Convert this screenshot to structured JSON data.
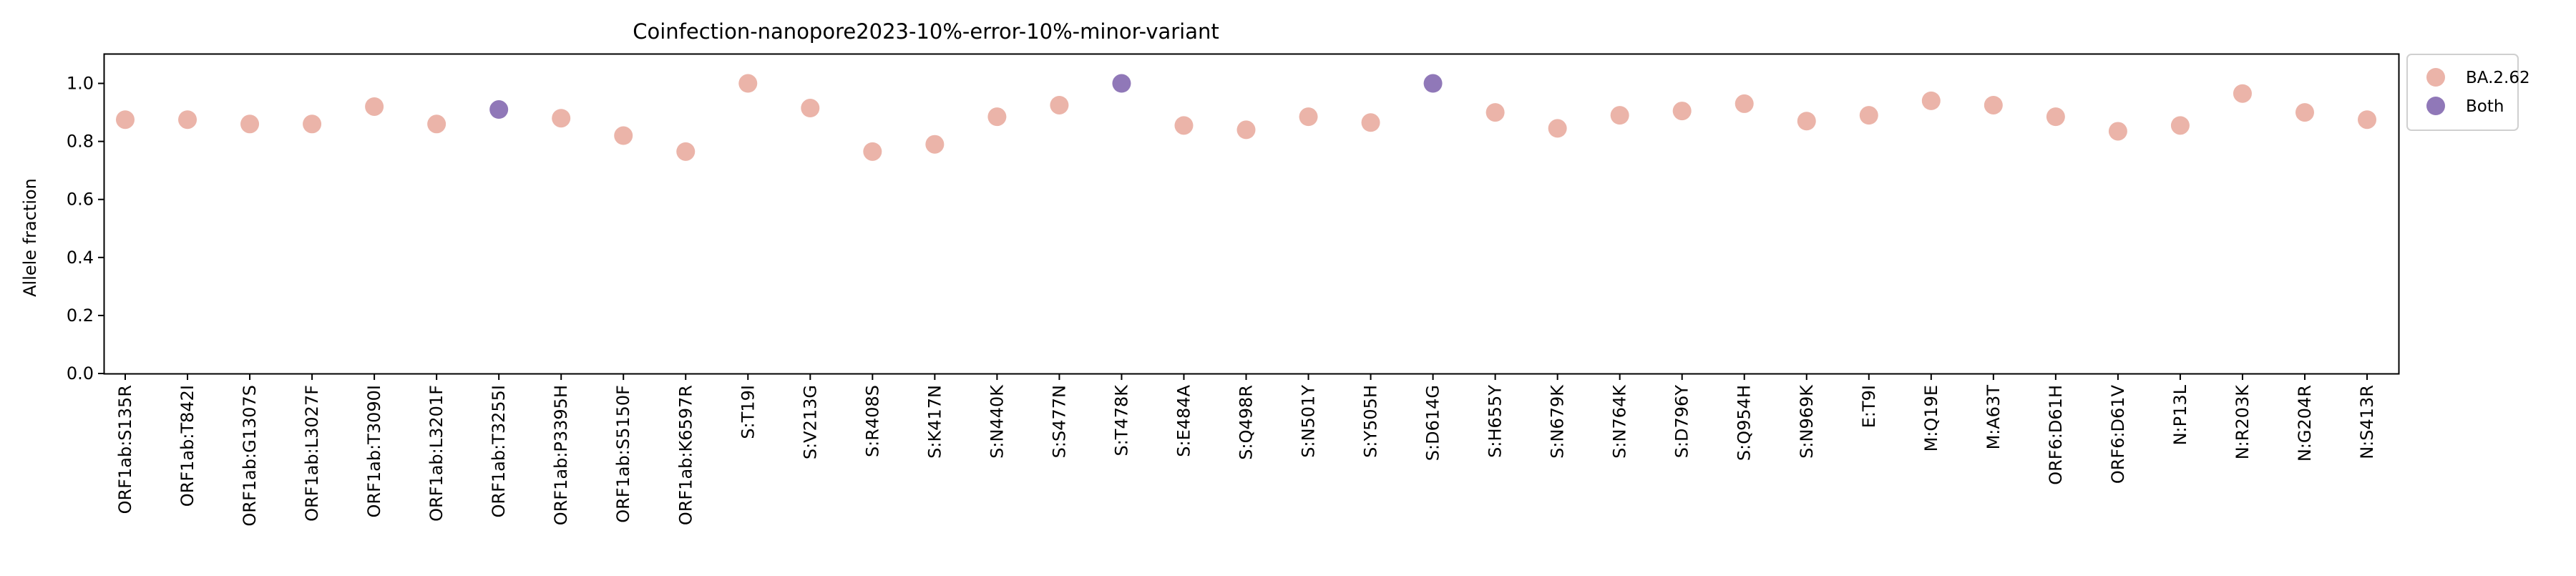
{
  "chart_data": {
    "type": "scatter",
    "title": "Coinfection-nanopore2023-10%-error-10%-minor-variant",
    "xlabel": "",
    "ylabel": "Allele fraction",
    "ylim": [
      0,
      1.1
    ],
    "yticks": [
      0.0,
      0.2,
      0.4,
      0.6,
      0.8,
      1.0
    ],
    "ytick_labels": [
      "0.0",
      "0.2",
      "0.4",
      "0.6",
      "0.8",
      "1.0"
    ],
    "grid": false,
    "legend": {
      "placement": "outside-top-right",
      "entries": [
        {
          "label": "BA.2.62",
          "color": "#ebb4a9"
        },
        {
          "label": "Both",
          "color": "#9078b8"
        }
      ]
    },
    "categories": [
      "ORF1ab:S135R",
      "ORF1ab:T842I",
      "ORF1ab:G1307S",
      "ORF1ab:L3027F",
      "ORF1ab:T3090I",
      "ORF1ab:L3201F",
      "ORF1ab:T3255I",
      "ORF1ab:P3395H",
      "ORF1ab:S5150F",
      "ORF1ab:K6597R",
      "S:T19I",
      "S:V213G",
      "S:R408S",
      "S:K417N",
      "S:N440K",
      "S:S477N",
      "S:T478K",
      "S:E484A",
      "S:Q498R",
      "S:N501Y",
      "S:Y505H",
      "S:D614G",
      "S:H655Y",
      "S:N679K",
      "S:N764K",
      "S:D796Y",
      "S:Q954H",
      "S:N969K",
      "E:T9I",
      "M:Q19E",
      "M:A63T",
      "ORF6:D61H",
      "ORF6:D61V",
      "N:P13L",
      "N:R203K",
      "N:G204R",
      "N:S413R"
    ],
    "values": [
      0.875,
      0.875,
      0.86,
      0.86,
      0.92,
      0.86,
      0.91,
      0.88,
      0.82,
      0.765,
      1.0,
      0.915,
      0.765,
      0.79,
      0.885,
      0.925,
      1.0,
      0.855,
      0.84,
      0.885,
      0.865,
      1.0,
      0.9,
      0.845,
      0.89,
      0.905,
      0.93,
      0.87,
      0.89,
      0.94,
      0.925,
      0.885,
      0.835,
      0.855,
      0.965,
      0.9,
      0.875
    ],
    "groups": [
      "BA.2.62",
      "BA.2.62",
      "BA.2.62",
      "BA.2.62",
      "BA.2.62",
      "BA.2.62",
      "Both",
      "BA.2.62",
      "BA.2.62",
      "BA.2.62",
      "BA.2.62",
      "BA.2.62",
      "BA.2.62",
      "BA.2.62",
      "BA.2.62",
      "BA.2.62",
      "Both",
      "BA.2.62",
      "BA.2.62",
      "BA.2.62",
      "BA.2.62",
      "Both",
      "BA.2.62",
      "BA.2.62",
      "BA.2.62",
      "BA.2.62",
      "BA.2.62",
      "BA.2.62",
      "BA.2.62",
      "BA.2.62",
      "BA.2.62",
      "BA.2.62",
      "BA.2.62",
      "BA.2.62",
      "BA.2.62",
      "BA.2.62",
      "BA.2.62"
    ]
  }
}
